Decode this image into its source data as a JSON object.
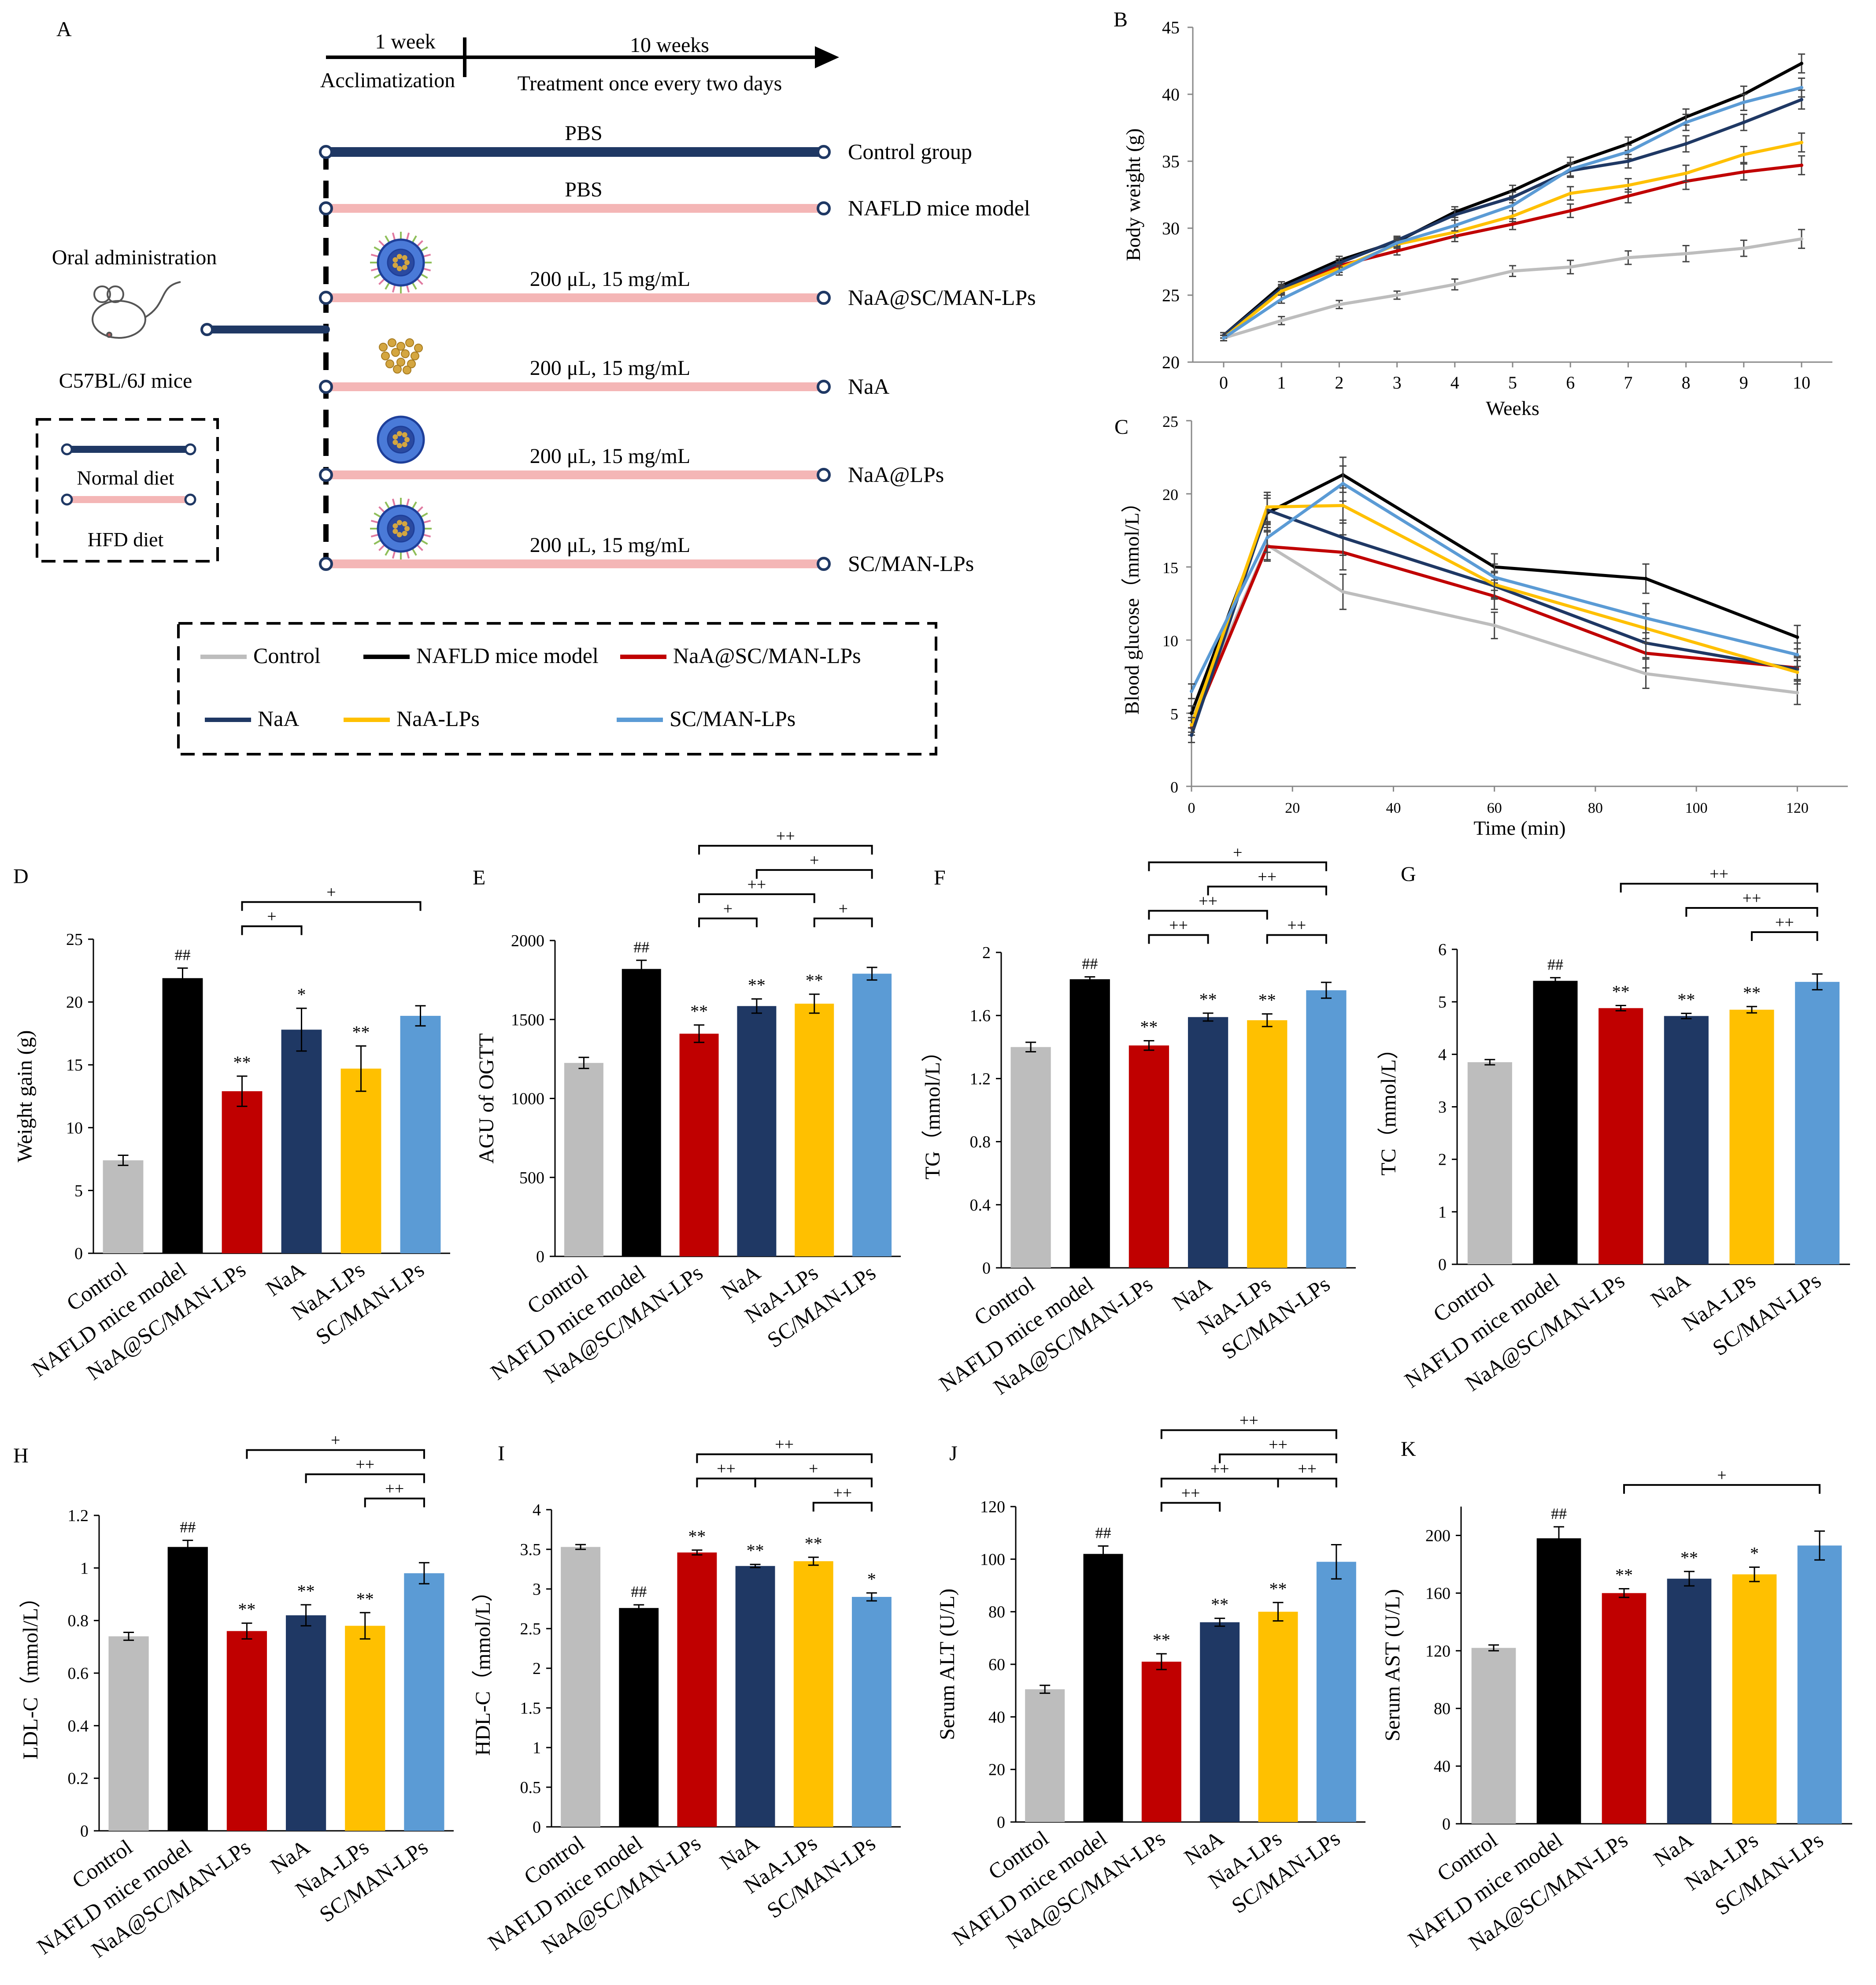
{
  "colors": {
    "control": "#bdbdbd",
    "model": "#000000",
    "red": "#c00000",
    "navy": "#1f3864",
    "yellow": "#ffc000",
    "lightblue": "#5b9bd5",
    "pbs_line": "#1f3864",
    "hfd_line": "#f4b6b6"
  },
  "panelA": {
    "label": "A",
    "timeline": {
      "week1": "1 week",
      "week10": "10 weeks",
      "acclim": "Acclimatization",
      "treat": "Treatment once every two days"
    },
    "oral": "Oral administration",
    "mouse": "C57BL/6J mice",
    "diet_box": {
      "normal": "Normal diet",
      "hfd": "HFD diet"
    },
    "groups": [
      {
        "dose": "PBS",
        "name": "Control group",
        "line": "normal",
        "particle": "none"
      },
      {
        "dose": "PBS",
        "name": "NAFLD mice model",
        "line": "hfd",
        "particle": "none"
      },
      {
        "dose": "200 μL, 15 mg/mL",
        "name": "NaA@SC/MAN-LPs",
        "line": "hfd",
        "particle": "decorated"
      },
      {
        "dose": "200 μL, 15 mg/mL",
        "name": "NaA",
        "line": "hfd",
        "particle": "drug"
      },
      {
        "dose": "200 μL, 15 mg/mL",
        "name": "NaA@LPs",
        "line": "hfd",
        "particle": "plain"
      },
      {
        "dose": "200 μL, 15 mg/mL",
        "name": "SC/MAN-LPs",
        "line": "hfd",
        "particle": "decorated"
      }
    ],
    "legend": [
      {
        "name": "Control",
        "color": "#bdbdbd"
      },
      {
        "name": "NAFLD mice model",
        "color": "#000000"
      },
      {
        "name": "NaA@SC/MAN-LPs",
        "color": "#c00000"
      },
      {
        "name": "NaA",
        "color": "#1f3864"
      },
      {
        "name": "NaA-LPs",
        "color": "#ffc000"
      },
      {
        "name": "SC/MAN-LPs",
        "color": "#5b9bd5"
      }
    ]
  },
  "chart_data": [
    {
      "id": "B",
      "type": "line",
      "label": "B",
      "xlabel": "Weeks",
      "ylabel": "Body weight (g)",
      "x": [
        0,
        1,
        2,
        3,
        4,
        5,
        6,
        7,
        8,
        9,
        10
      ],
      "xticks": [
        0,
        1,
        2,
        3,
        4,
        5,
        6,
        7,
        8,
        9,
        10
      ],
      "ylim": [
        20,
        45
      ],
      "yticks": [
        20,
        25,
        30,
        35,
        40,
        45
      ],
      "series": [
        {
          "name": "Control",
          "color": "#bdbdbd",
          "values": [
            21.8,
            23.1,
            24.3,
            25.0,
            25.8,
            26.8,
            27.1,
            27.8,
            28.1,
            28.5,
            29.2
          ]
        },
        {
          "name": "NAFLD mice model",
          "color": "#000000",
          "values": [
            22.0,
            25.7,
            27.6,
            29.0,
            31.2,
            32.8,
            34.8,
            36.3,
            38.3,
            40.0,
            42.3
          ]
        },
        {
          "name": "NaA@SC/MAN-LPs",
          "color": "#c00000",
          "values": [
            22.0,
            25.4,
            27.2,
            28.3,
            29.4,
            30.3,
            31.3,
            32.4,
            33.5,
            34.2,
            34.7
          ]
        },
        {
          "name": "NaA",
          "color": "#1f3864",
          "values": [
            22.0,
            25.5,
            27.4,
            29.1,
            31.0,
            32.3,
            34.3,
            35.0,
            36.3,
            37.9,
            39.6
          ]
        },
        {
          "name": "NaA-LPs",
          "color": "#ffc000",
          "values": [
            21.8,
            25.3,
            27.0,
            28.8,
            29.7,
            30.9,
            32.6,
            33.2,
            34.1,
            35.5,
            36.4
          ]
        },
        {
          "name": "SC/MAN-LPs",
          "color": "#5b9bd5",
          "values": [
            21.8,
            24.7,
            26.8,
            28.9,
            30.2,
            31.7,
            34.4,
            35.7,
            37.9,
            39.4,
            40.5
          ]
        }
      ],
      "errors": [
        0.2,
        0.3,
        0.3,
        0.3,
        0.4,
        0.4,
        0.5,
        0.5,
        0.6,
        0.6,
        0.7
      ]
    },
    {
      "id": "C",
      "type": "line",
      "label": "C",
      "xlabel": "Time (min)",
      "ylabel": "Blood glucose（mmol/L）",
      "x": [
        0,
        15,
        30,
        60,
        90,
        120
      ],
      "xlim": [
        0,
        130
      ],
      "xticks": [
        0,
        20,
        40,
        60,
        80,
        100,
        120
      ],
      "ylim": [
        0,
        25
      ],
      "yticks": [
        0,
        5,
        10,
        15,
        20,
        25
      ],
      "series": [
        {
          "name": "Control",
          "color": "#bdbdbd",
          "values": [
            4.5,
            16.5,
            13.3,
            11.0,
            7.7,
            6.4
          ]
        },
        {
          "name": "NAFLD mice model",
          "color": "#000000",
          "values": [
            5.0,
            18.7,
            21.3,
            15.0,
            14.2,
            10.2
          ]
        },
        {
          "name": "NaA@SC/MAN-LPs",
          "color": "#c00000",
          "values": [
            4.0,
            16.4,
            16.0,
            13.0,
            9.1,
            8.1
          ]
        },
        {
          "name": "NaA",
          "color": "#1f3864",
          "values": [
            3.5,
            18.9,
            17.0,
            13.7,
            9.8,
            8.0
          ]
        },
        {
          "name": "NaA-LPs",
          "color": "#ffc000",
          "values": [
            4.2,
            19.1,
            19.2,
            13.8,
            10.8,
            7.8
          ]
        },
        {
          "name": "SC/MAN-LPs",
          "color": "#5b9bd5",
          "values": [
            6.5,
            17.0,
            20.7,
            14.3,
            11.5,
            9.0
          ]
        }
      ],
      "errors": [
        0.5,
        1.0,
        1.2,
        0.9,
        1.0,
        0.8
      ]
    },
    {
      "id": "D",
      "type": "bar",
      "label": "D",
      "ylabel": "Weight gain (g)",
      "categories": [
        "Control",
        "NAFLD mice model",
        "NaA@SC/MAN-LPs",
        "NaA",
        "NaA-LPs",
        "SC/MAN-LPs"
      ],
      "values": [
        7.4,
        21.9,
        12.9,
        17.8,
        14.7,
        18.9
      ],
      "errors": [
        0.4,
        0.8,
        1.2,
        1.7,
        1.8,
        0.8
      ],
      "ylim": [
        0,
        25
      ],
      "yticks": [
        "0",
        "5",
        "10",
        "15",
        "20",
        "25"
      ],
      "marks": [
        "",
        "##",
        "**",
        "*",
        "**",
        ""
      ],
      "brackets": [
        {
          "from": 2,
          "to": 3,
          "level": 0,
          "label": "+"
        },
        {
          "from": 2,
          "to": 5,
          "level": 1,
          "label": "+"
        }
      ]
    },
    {
      "id": "E",
      "type": "bar",
      "label": "E",
      "ylabel": "AGU of OGTT",
      "categories": [
        "Control",
        "NAFLD mice model",
        "NaA@SC/MAN-LPs",
        "NaA",
        "NaA-LPs",
        "SC/MAN-LPs"
      ],
      "values": [
        1225,
        1820,
        1410,
        1585,
        1600,
        1790
      ],
      "errors": [
        35,
        55,
        55,
        45,
        60,
        40
      ],
      "ylim": [
        0,
        2000
      ],
      "yticks": [
        "0",
        "500",
        "1000",
        "1500",
        "2000"
      ],
      "marks": [
        "",
        "##",
        "**",
        "**",
        "**",
        ""
      ],
      "brackets": [
        {
          "from": 2,
          "to": 3,
          "level": 0,
          "label": "+"
        },
        {
          "from": 4,
          "to": 5,
          "level": 0,
          "label": "+"
        },
        {
          "from": 2,
          "to": 4,
          "level": 1,
          "label": "++"
        },
        {
          "from": 3,
          "to": 5,
          "level": 2,
          "label": "+"
        },
        {
          "from": 2,
          "to": 5,
          "level": 3,
          "label": "++"
        }
      ]
    },
    {
      "id": "F",
      "type": "bar",
      "label": "F",
      "ylabel": "TG（mmol/L）",
      "categories": [
        "Control",
        "NAFLD mice model",
        "NaA@SC/MAN-LPs",
        "NaA",
        "NaA-LPs",
        "SC/MAN-LPs"
      ],
      "values": [
        1.4,
        1.83,
        1.41,
        1.59,
        1.57,
        1.76
      ],
      "errors": [
        0.03,
        0.015,
        0.03,
        0.025,
        0.04,
        0.05
      ],
      "ylim": [
        0,
        2
      ],
      "yticks": [
        "0",
        "0.4",
        "0.8",
        "1.2",
        "1.6",
        "2"
      ],
      "marks": [
        "",
        "##",
        "**",
        "**",
        "**",
        ""
      ],
      "brackets": [
        {
          "from": 2,
          "to": 3,
          "level": 0,
          "label": "++"
        },
        {
          "from": 4,
          "to": 5,
          "level": 0,
          "label": "++"
        },
        {
          "from": 2,
          "to": 4,
          "level": 1,
          "label": "++"
        },
        {
          "from": 3,
          "to": 5,
          "level": 2,
          "label": "++"
        },
        {
          "from": 2,
          "to": 5,
          "level": 3,
          "label": "+"
        }
      ]
    },
    {
      "id": "G",
      "type": "bar",
      "label": "G",
      "ylabel": "TC（mmol/L）",
      "categories": [
        "Control",
        "NAFLD mice model",
        "NaA@SC/MAN-LPs",
        "NaA",
        "NaA-LPs",
        "SC/MAN-LPs"
      ],
      "values": [
        3.85,
        5.4,
        4.88,
        4.73,
        4.85,
        5.38
      ],
      "errors": [
        0.05,
        0.06,
        0.05,
        0.05,
        0.06,
        0.15
      ],
      "ylim": [
        0,
        6
      ],
      "yticks": [
        "0",
        "1",
        "2",
        "3",
        "4",
        "5",
        "6"
      ],
      "marks": [
        "",
        "##",
        "**",
        "**",
        "**",
        ""
      ],
      "brackets": [
        {
          "from": 4,
          "to": 5,
          "level": 0,
          "label": "++"
        },
        {
          "from": 3,
          "to": 5,
          "level": 1,
          "label": "++"
        },
        {
          "from": 2,
          "to": 5,
          "level": 2,
          "label": "++"
        }
      ]
    },
    {
      "id": "H",
      "type": "bar",
      "label": "H",
      "ylabel": "LDL-C（mmol/L）",
      "categories": [
        "Control",
        "NAFLD mice model",
        "NaA@SC/MAN-LPs",
        "NaA",
        "NaA-LPs",
        "SC/MAN-LPs"
      ],
      "values": [
        0.74,
        1.08,
        0.76,
        0.82,
        0.78,
        0.98
      ],
      "errors": [
        0.015,
        0.025,
        0.03,
        0.04,
        0.05,
        0.04
      ],
      "ylim": [
        0,
        1.2
      ],
      "yticks": [
        "0",
        "0.2",
        "0.4",
        "0.6",
        "0.8",
        "1",
        "1.2"
      ],
      "marks": [
        "",
        "##",
        "**",
        "**",
        "**",
        ""
      ],
      "brackets": [
        {
          "from": 4,
          "to": 5,
          "level": 0,
          "label": "++"
        },
        {
          "from": 3,
          "to": 5,
          "level": 1,
          "label": "++"
        },
        {
          "from": 2,
          "to": 5,
          "level": 2,
          "label": "+"
        }
      ]
    },
    {
      "id": "I",
      "type": "bar",
      "label": "I",
      "ylabel": "HDL-C（mmol/L）",
      "categories": [
        "Control",
        "NAFLD mice model",
        "NaA@SC/MAN-LPs",
        "NaA",
        "NaA-LPs",
        "SC/MAN-LPs"
      ],
      "values": [
        3.53,
        2.76,
        3.46,
        3.29,
        3.35,
        2.9
      ],
      "errors": [
        0.03,
        0.04,
        0.03,
        0.02,
        0.05,
        0.05
      ],
      "ylim": [
        0,
        4
      ],
      "yticks": [
        "0",
        "0.5",
        "1",
        "1.5",
        "2",
        "2.5",
        "3",
        "3.5",
        "4"
      ],
      "marks": [
        "",
        "##",
        "**",
        "**",
        "**",
        "*"
      ],
      "brackets": [
        {
          "from": 4,
          "to": 5,
          "level": 0,
          "label": "++"
        },
        {
          "from": 2,
          "to": 3,
          "level": 1,
          "label": "++"
        },
        {
          "from": 3,
          "to": 5,
          "level": 1,
          "label": "+"
        },
        {
          "from": 2,
          "to": 5,
          "level": 2,
          "label": "++"
        }
      ]
    },
    {
      "id": "J",
      "type": "bar",
      "label": "J",
      "ylabel": "Serum ALT (U/L)",
      "categories": [
        "Control",
        "NAFLD mice model",
        "NaA@SC/MAN-LPs",
        "NaA",
        "NaA-LPs",
        "SC/MAN-LPs"
      ],
      "values": [
        50.5,
        102,
        61,
        76,
        80,
        99
      ],
      "errors": [
        1.5,
        3,
        3,
        1.5,
        3.5,
        6.5
      ],
      "ylim": [
        0,
        120
      ],
      "yticks": [
        "0",
        "20",
        "40",
        "60",
        "80",
        "100",
        "120"
      ],
      "marks": [
        "",
        "##",
        "**",
        "**",
        "**",
        ""
      ],
      "brackets": [
        {
          "from": 2,
          "to": 3,
          "level": 0,
          "label": "++"
        },
        {
          "from": 2,
          "to": 4,
          "level": 1,
          "label": "++"
        },
        {
          "from": 4,
          "to": 5,
          "level": 1,
          "label": "++"
        },
        {
          "from": 3,
          "to": 5,
          "level": 2,
          "label": "++"
        },
        {
          "from": 2,
          "to": 5,
          "level": 3,
          "label": "++"
        }
      ]
    },
    {
      "id": "K",
      "type": "bar",
      "label": "K",
      "ylabel": "Serum AST (U/L)",
      "categories": [
        "Control",
        "NAFLD mice model",
        "NaA@SC/MAN-LPs",
        "NaA",
        "NaA-LPs",
        "SC/MAN-LPs"
      ],
      "values": [
        122,
        198,
        160,
        170,
        173,
        193
      ],
      "errors": [
        2,
        8,
        3,
        5,
        5,
        10
      ],
      "ylim": [
        0,
        220
      ],
      "yticks": [
        "0",
        "40",
        "80",
        "120",
        "160",
        "200"
      ],
      "marks": [
        "",
        "##",
        "**",
        "**",
        "*",
        ""
      ],
      "brackets": [
        {
          "from": 2,
          "to": 5,
          "level": 0,
          "label": "+"
        }
      ]
    }
  ]
}
